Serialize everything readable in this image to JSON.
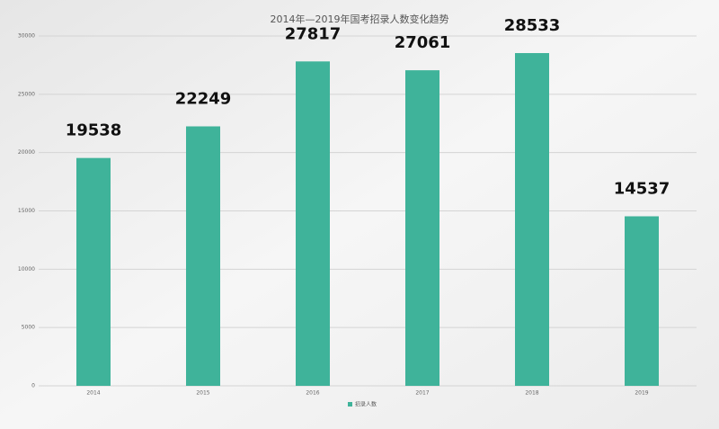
{
  "chart_data": {
    "type": "bar",
    "title": "2014年—2019年国考招录人数变化趋势",
    "categories": [
      "2014",
      "2015",
      "2016",
      "2017",
      "2018",
      "2019"
    ],
    "series": [
      {
        "name": "招录人数",
        "color": "#3fb39a",
        "values": [
          19538,
          22249,
          27817,
          27061,
          28533,
          14537
        ]
      }
    ],
    "ylim": [
      0,
      30000
    ],
    "yticks": [
      0,
      5000,
      10000,
      15000,
      20000,
      25000,
      30000
    ],
    "grid": true,
    "legend": "bottom"
  }
}
